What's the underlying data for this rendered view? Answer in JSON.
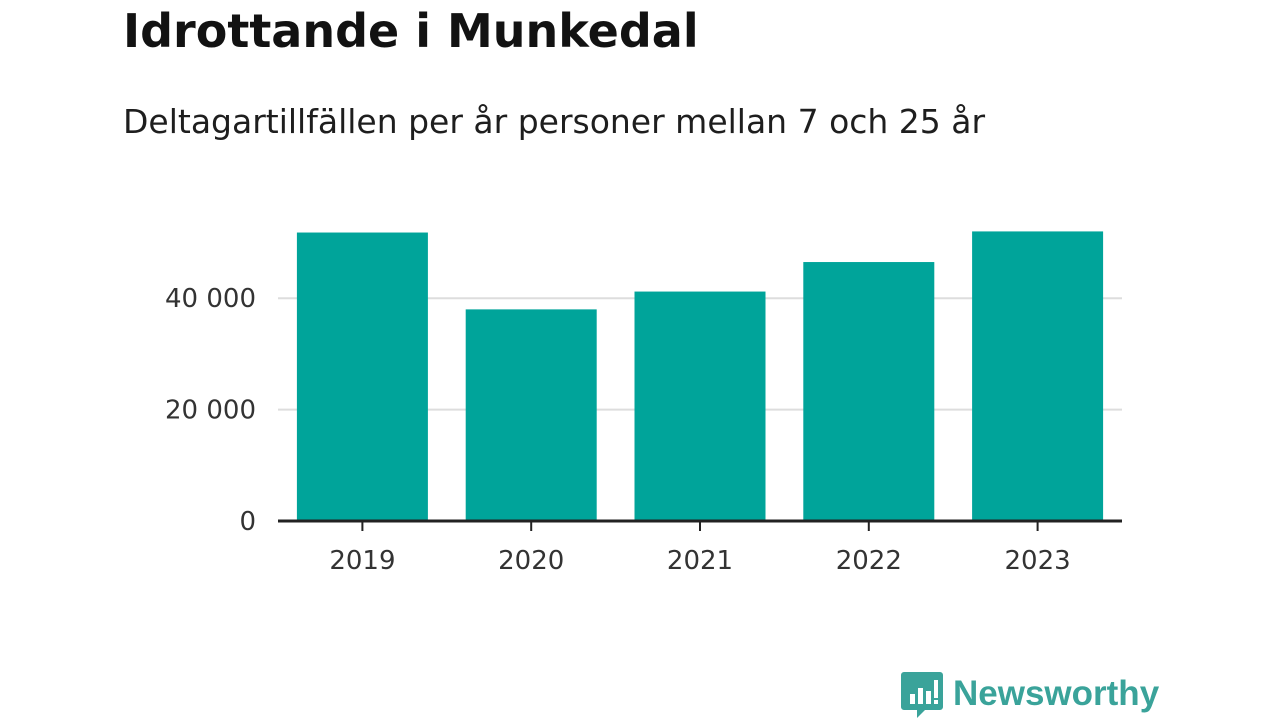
{
  "header": {
    "title": "Idrottande i Munkedal",
    "subtitle": "Deltagartillfällen per år personer mellan 7 och 25 år"
  },
  "brand": {
    "name": "Newsworthy",
    "logo_icon": "bar-chart-speech-bubble-icon",
    "color": "#3aa39a"
  },
  "colors": {
    "bar": "#00a49a",
    "grid": "#dddddd",
    "axis": "#222222",
    "tick_text": "#333333"
  },
  "chart_data": {
    "type": "bar",
    "title": "Idrottande i Munkedal",
    "subtitle": "Deltagartillfällen per år personer mellan 7 och 25 år",
    "categories": [
      "2019",
      "2020",
      "2021",
      "2022",
      "2023"
    ],
    "values": [
      51800,
      38000,
      41200,
      46500,
      52000
    ],
    "ylim": [
      0,
      58000
    ],
    "yticks": [
      0,
      20000,
      40000
    ],
    "ytick_labels": [
      "0",
      "20 000",
      "40 000"
    ],
    "xlabel": "",
    "ylabel": "",
    "grid": true,
    "legend": "none"
  }
}
